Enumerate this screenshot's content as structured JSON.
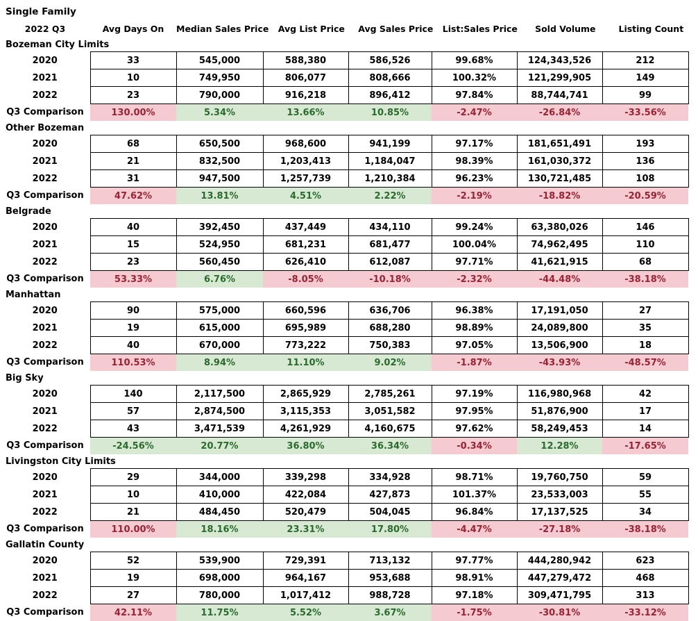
{
  "colors": {
    "bad_bg": "#f5cbd1",
    "bad_text": "#9c2233",
    "good_bg": "#d8e9d3",
    "good_text": "#2a6b2d",
    "border": "#000000",
    "text": "#000000"
  },
  "chart_data": {
    "type": "table",
    "title": "Single Family",
    "subtitle": "2022 Q3",
    "columns": [
      "Avg Days On",
      "Median Sales Price",
      "Avg List Price",
      "Avg Sales Price",
      "List:Sales Price",
      "Sold Volume",
      "Listing Count"
    ],
    "comparison_label": "Q3 Comparison",
    "sections": [
      {
        "name": "Bozeman City Limits",
        "rows": [
          {
            "year": "2020",
            "values": [
              "33",
              "545,000",
              "588,380",
              "586,526",
              "99.68%",
              "124,343,526",
              "212"
            ]
          },
          {
            "year": "2021",
            "values": [
              "10",
              "749,950",
              "806,077",
              "808,666",
              "100.32%",
              "121,299,905",
              "149"
            ]
          },
          {
            "year": "2022",
            "values": [
              "23",
              "790,000",
              "916,218",
              "896,412",
              "97.84%",
              "88,744,741",
              "99"
            ]
          }
        ],
        "comparison": {
          "values": [
            "130.00%",
            "5.34%",
            "13.66%",
            "10.85%",
            "-2.47%",
            "-26.84%",
            "-33.56%"
          ],
          "sentiments": [
            "bad",
            "good",
            "good",
            "good",
            "bad",
            "bad",
            "bad"
          ]
        }
      },
      {
        "name": "Other Bozeman",
        "rows": [
          {
            "year": "2020",
            "values": [
              "68",
              "650,500",
              "968,600",
              "941,199",
              "97.17%",
              "181,651,491",
              "193"
            ]
          },
          {
            "year": "2021",
            "values": [
              "21",
              "832,500",
              "1,203,413",
              "1,184,047",
              "98.39%",
              "161,030,372",
              "136"
            ]
          },
          {
            "year": "2022",
            "values": [
              "31",
              "947,500",
              "1,257,739",
              "1,210,384",
              "96.23%",
              "130,721,485",
              "108"
            ]
          }
        ],
        "comparison": {
          "values": [
            "47.62%",
            "13.81%",
            "4.51%",
            "2.22%",
            "-2.19%",
            "-18.82%",
            "-20.59%"
          ],
          "sentiments": [
            "bad",
            "good",
            "good",
            "good",
            "bad",
            "bad",
            "bad"
          ]
        }
      },
      {
        "name": "Belgrade",
        "rows": [
          {
            "year": "2020",
            "values": [
              "40",
              "392,450",
              "437,449",
              "434,110",
              "99.24%",
              "63,380,026",
              "146"
            ]
          },
          {
            "year": "2021",
            "values": [
              "15",
              "524,950",
              "681,231",
              "681,477",
              "100.04%",
              "74,962,495",
              "110"
            ]
          },
          {
            "year": "2022",
            "values": [
              "23",
              "560,450",
              "626,410",
              "612,087",
              "97.71%",
              "41,621,915",
              "68"
            ]
          }
        ],
        "comparison": {
          "values": [
            "53.33%",
            "6.76%",
            "-8.05%",
            "-10.18%",
            "-2.32%",
            "-44.48%",
            "-38.18%"
          ],
          "sentiments": [
            "bad",
            "good",
            "bad",
            "bad",
            "bad",
            "bad",
            "bad"
          ]
        }
      },
      {
        "name": "Manhattan",
        "rows": [
          {
            "year": "2020",
            "values": [
              "90",
              "575,000",
              "660,596",
              "636,706",
              "96.38%",
              "17,191,050",
              "27"
            ]
          },
          {
            "year": "2021",
            "values": [
              "19",
              "615,000",
              "695,989",
              "688,280",
              "98.89%",
              "24,089,800",
              "35"
            ]
          },
          {
            "year": "2022",
            "values": [
              "40",
              "670,000",
              "773,222",
              "750,383",
              "97.05%",
              "13,506,900",
              "18"
            ]
          }
        ],
        "comparison": {
          "values": [
            "110.53%",
            "8.94%",
            "11.10%",
            "9.02%",
            "-1.87%",
            "-43.93%",
            "-48.57%"
          ],
          "sentiments": [
            "bad",
            "good",
            "good",
            "good",
            "bad",
            "bad",
            "bad"
          ]
        }
      },
      {
        "name": "Big Sky",
        "rows": [
          {
            "year": "2020",
            "values": [
              "140",
              "2,117,500",
              "2,865,929",
              "2,785,261",
              "97.19%",
              "116,980,968",
              "42"
            ]
          },
          {
            "year": "2021",
            "values": [
              "57",
              "2,874,500",
              "3,115,353",
              "3,051,582",
              "97.95%",
              "51,876,900",
              "17"
            ]
          },
          {
            "year": "2022",
            "values": [
              "43",
              "3,471,539",
              "4,261,929",
              "4,160,675",
              "97.62%",
              "58,249,453",
              "14"
            ]
          }
        ],
        "comparison": {
          "values": [
            "-24.56%",
            "20.77%",
            "36.80%",
            "36.34%",
            "-0.34%",
            "12.28%",
            "-17.65%"
          ],
          "sentiments": [
            "good",
            "good",
            "good",
            "good",
            "bad",
            "good",
            "bad"
          ]
        }
      },
      {
        "name": "Livingston City Limits",
        "rows": [
          {
            "year": "2020",
            "values": [
              "29",
              "344,000",
              "339,298",
              "334,928",
              "98.71%",
              "19,760,750",
              "59"
            ]
          },
          {
            "year": "2021",
            "values": [
              "10",
              "410,000",
              "422,084",
              "427,873",
              "101.37%",
              "23,533,003",
              "55"
            ]
          },
          {
            "year": "2022",
            "values": [
              "21",
              "484,450",
              "520,479",
              "504,045",
              "96.84%",
              "17,137,525",
              "34"
            ]
          }
        ],
        "comparison": {
          "values": [
            "110.00%",
            "18.16%",
            "23.31%",
            "17.80%",
            "-4.47%",
            "-27.18%",
            "-38.18%"
          ],
          "sentiments": [
            "bad",
            "good",
            "good",
            "good",
            "bad",
            "bad",
            "bad"
          ]
        }
      },
      {
        "name": "Gallatin County",
        "rows": [
          {
            "year": "2020",
            "values": [
              "52",
              "539,900",
              "729,391",
              "713,132",
              "97.77%",
              "444,280,942",
              "623"
            ]
          },
          {
            "year": "2021",
            "values": [
              "19",
              "698,000",
              "964,167",
              "953,688",
              "98.91%",
              "447,279,472",
              "468"
            ]
          },
          {
            "year": "2022",
            "values": [
              "27",
              "780,000",
              "1,017,412",
              "988,728",
              "97.18%",
              "309,471,795",
              "313"
            ]
          }
        ],
        "comparison": {
          "values": [
            "42.11%",
            "11.75%",
            "5.52%",
            "3.67%",
            "-1.75%",
            "-30.81%",
            "-33.12%"
          ],
          "sentiments": [
            "bad",
            "good",
            "good",
            "good",
            "bad",
            "bad",
            "bad"
          ]
        }
      }
    ]
  }
}
